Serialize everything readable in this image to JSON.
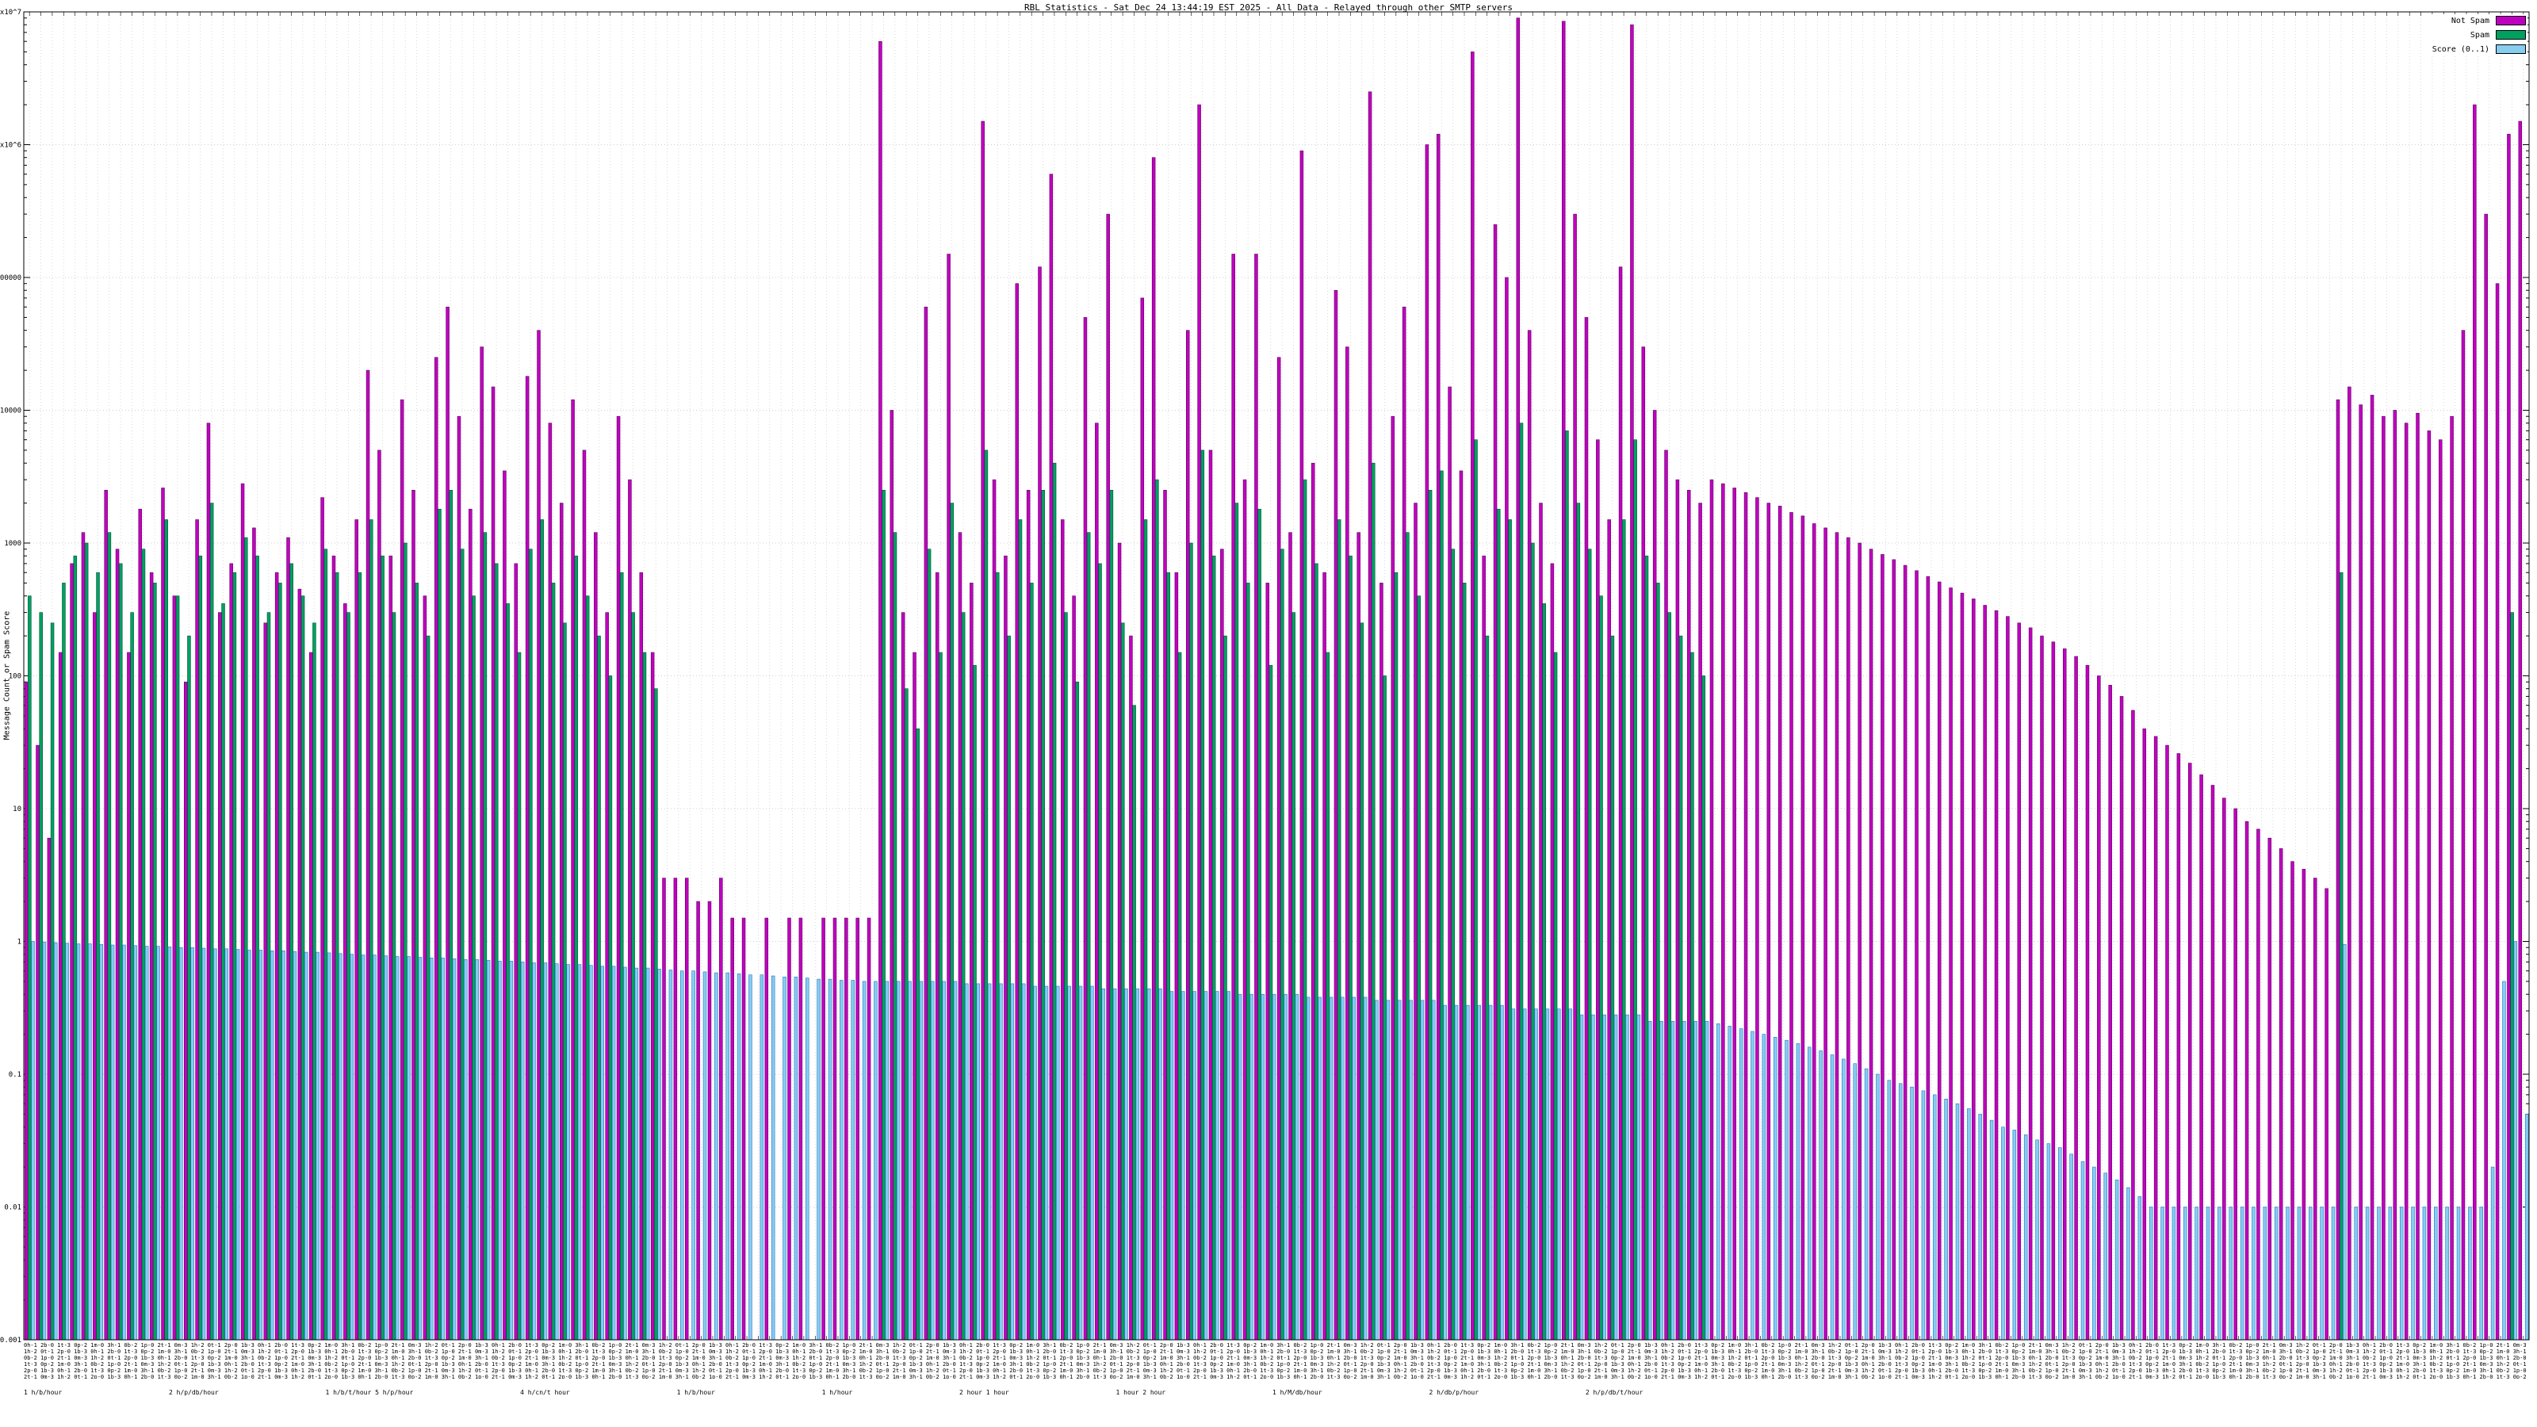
{
  "chart_data": {
    "type": "bar",
    "title": "RBL Statistics - Sat Dec 24 13:44:19 EST 2025 - All Data - Relayed through other SMTP servers",
    "ylabel": "Message Count or Spam Score",
    "ylog": true,
    "ymin": 0.001,
    "ymax": 10000000,
    "grid": true,
    "legend_position": "top-right",
    "y_ticks": [
      {
        "value": 10000000,
        "label": "1x10^7"
      },
      {
        "value": 1000000,
        "label": "1x10^6"
      },
      {
        "value": 100000,
        "label": "100000"
      },
      {
        "value": 10000,
        "label": "10000"
      },
      {
        "value": 1000,
        "label": "1000"
      },
      {
        "value": 100,
        "label": "100"
      },
      {
        "value": 10,
        "label": "10"
      },
      {
        "value": 1,
        "label": "1"
      },
      {
        "value": 0.1,
        "label": "0.1"
      },
      {
        "value": 0.01,
        "label": "0.01"
      },
      {
        "value": 0.001,
        "label": "0.001"
      }
    ],
    "legend": [
      {
        "label": "Not Spam",
        "color": "#c000c0"
      },
      {
        "label": "Spam",
        "color": "#00a060"
      },
      {
        "label": "Score (0..1)",
        "color": "#86cdf0"
      }
    ],
    "xaxis_row1": "0h-1 2b-0 1t-3 0p-2 1m-0 3h-1 0b-2 1p-0 2t-1 0m-3 1h-2 0t-1 2p-0 1b-3 ",
    "xaxis_row2": "1 h/b/hour                            2 h/p/db/hour                            1 h/b/t/hour 5 h/p/hour                            4 h/cn/t hour                            1 h/b/hour                            1 h/hour                            2 hour 1 hour                            1 hour 2 hour                            1 h/M/db/hour                            2 h/db/p/hour                            2 h/p/db/t/hour",
    "series": [
      {
        "id": "not-spam",
        "name": "Not Spam",
        "color": "#c000c0",
        "stroke": "#5c005c",
        "values": [
          90,
          30,
          6,
          150,
          700,
          1200,
          300,
          2500,
          900,
          150,
          1800,
          600,
          2600,
          400,
          90,
          1500,
          8000,
          300,
          700,
          2800,
          1300,
          250,
          600,
          1100,
          450,
          150,
          2200,
          800,
          350,
          1500,
          20000,
          5000,
          800,
          12000,
          2500,
          400,
          25000,
          60000,
          9000,
          1800,
          30000,
          15000,
          3500,
          700,
          18000,
          40000,
          8000,
          2000,
          12000,
          5000,
          1200,
          300,
          9000,
          3000,
          600,
          150,
          3,
          3,
          3,
          2,
          2,
          3,
          1.5,
          1.5,
          0,
          1.5,
          0,
          1.5,
          1.5,
          0,
          1.5,
          1.5,
          1.5,
          1.5,
          1.5,
          6000000,
          10000,
          300,
          150,
          60000,
          600,
          150000,
          1200,
          500,
          1500000,
          3000,
          800,
          90000,
          2500,
          120000,
          600000,
          1500,
          400,
          50000,
          8000,
          300000,
          1000,
          200,
          70000,
          800000,
          2500,
          600,
          40000,
          2000000,
          5000,
          900,
          150000,
          3000,
          150000,
          500,
          25000,
          1200,
          900000,
          4000,
          600,
          80000,
          30000,
          1200,
          2500000,
          500,
          9000,
          60000,
          2000,
          1000000,
          1200000,
          15000,
          3500,
          5000000,
          800,
          250000,
          100000,
          9000000,
          40000,
          2000,
          700,
          8500000,
          300000,
          50000,
          6000,
          1500,
          120000,
          8000000,
          30000,
          10000,
          5000,
          3000,
          2500,
          2000,
          3000,
          2800,
          2600,
          2400,
          2200,
          2000,
          1900,
          1700,
          1600,
          1400,
          1300,
          1200,
          1100,
          1000,
          900,
          820,
          750,
          680,
          620,
          560,
          510,
          460,
          420,
          380,
          340,
          310,
          280,
          250,
          230,
          200,
          180,
          160,
          140,
          120,
          100,
          85,
          70,
          55,
          40,
          35,
          30,
          26,
          22,
          18,
          15,
          12,
          10,
          8,
          7,
          6,
          5,
          4,
          3.5,
          3,
          2.5,
          12000,
          15000,
          11000,
          13000,
          9000,
          10000,
          8000,
          9500,
          7000,
          6000,
          9000,
          40000,
          2000000,
          300000,
          90000,
          1200000,
          1500000
        ]
      },
      {
        "id": "spam",
        "name": "Spam",
        "color": "#00a060",
        "stroke": "#00513a",
        "values": [
          400,
          300,
          250,
          500,
          800,
          1000,
          600,
          1200,
          700,
          300,
          900,
          500,
          1500,
          400,
          200,
          800,
          2000,
          350,
          600,
          1100,
          800,
          300,
          500,
          700,
          400,
          250,
          900,
          600,
          300,
          600,
          1500,
          800,
          300,
          1000,
          500,
          200,
          1800,
          2500,
          900,
          400,
          1200,
          700,
          350,
          150,
          900,
          1500,
          500,
          250,
          800,
          400,
          200,
          100,
          600,
          300,
          150,
          80,
          0,
          0,
          0,
          0,
          0,
          0,
          0,
          0,
          0,
          0,
          0,
          0,
          0,
          0,
          0,
          0,
          0,
          0,
          0,
          2500,
          1200,
          80,
          40,
          900,
          150,
          2000,
          300,
          120,
          5000,
          600,
          200,
          1500,
          500,
          2500,
          4000,
          300,
          90,
          1200,
          700,
          2500,
          250,
          60,
          1500,
          3000,
          600,
          150,
          1000,
          5000,
          800,
          200,
          2000,
          500,
          1800,
          120,
          900,
          300,
          3000,
          700,
          150,
          1500,
          800,
          250,
          4000,
          100,
          600,
          1200,
          400,
          2500,
          3500,
          900,
          500,
          6000,
          200,
          1800,
          1500,
          8000,
          1000,
          350,
          150,
          7000,
          2000,
          900,
          400,
          200,
          1500,
          6000,
          800,
          500,
          300,
          200,
          150,
          100,
          0,
          0,
          0,
          0,
          0,
          0,
          0,
          0,
          0,
          0,
          0,
          0,
          0,
          0,
          0,
          0,
          0,
          0,
          0,
          0,
          0,
          0,
          0,
          0,
          0,
          0,
          0,
          0,
          0,
          0,
          0,
          0,
          0,
          0,
          0,
          0,
          0,
          0,
          0,
          0,
          0,
          0,
          0,
          0,
          0,
          0,
          0,
          0,
          0,
          0,
          0,
          0,
          0,
          0,
          0,
          600,
          0,
          0,
          0,
          0,
          0,
          0,
          0,
          0,
          0,
          0,
          0,
          0,
          0,
          0,
          300,
          0
        ]
      },
      {
        "id": "score",
        "name": "Score (0..1)",
        "color": "#86cdf0",
        "stroke": "#2b6fc4",
        "values": [
          1.0,
          0.99,
          0.98,
          0.97,
          0.96,
          0.96,
          0.95,
          0.94,
          0.94,
          0.93,
          0.92,
          0.92,
          0.91,
          0.9,
          0.9,
          0.89,
          0.88,
          0.88,
          0.87,
          0.86,
          0.86,
          0.85,
          0.85,
          0.84,
          0.83,
          0.83,
          0.82,
          0.81,
          0.8,
          0.79,
          0.79,
          0.78,
          0.77,
          0.77,
          0.76,
          0.75,
          0.75,
          0.74,
          0.73,
          0.73,
          0.72,
          0.71,
          0.71,
          0.7,
          0.69,
          0.69,
          0.68,
          0.67,
          0.67,
          0.66,
          0.65,
          0.65,
          0.64,
          0.63,
          0.63,
          0.62,
          0.61,
          0.6,
          0.6,
          0.59,
          0.58,
          0.58,
          0.57,
          0.56,
          0.56,
          0.55,
          0.54,
          0.54,
          0.53,
          0.52,
          0.52,
          0.51,
          0.51,
          0.5,
          0.5,
          0.5,
          0.5,
          0.5,
          0.5,
          0.5,
          0.5,
          0.5,
          0.48,
          0.48,
          0.48,
          0.48,
          0.48,
          0.48,
          0.46,
          0.46,
          0.46,
          0.46,
          0.46,
          0.46,
          0.44,
          0.44,
          0.44,
          0.44,
          0.44,
          0.44,
          0.42,
          0.42,
          0.42,
          0.42,
          0.42,
          0.42,
          0.4,
          0.4,
          0.4,
          0.4,
          0.4,
          0.4,
          0.38,
          0.38,
          0.38,
          0.38,
          0.38,
          0.38,
          0.36,
          0.36,
          0.36,
          0.36,
          0.36,
          0.36,
          0.33,
          0.33,
          0.33,
          0.33,
          0.33,
          0.33,
          0.31,
          0.31,
          0.31,
          0.31,
          0.31,
          0.31,
          0.28,
          0.28,
          0.28,
          0.28,
          0.28,
          0.28,
          0.25,
          0.25,
          0.25,
          0.25,
          0.25,
          0.25,
          0.24,
          0.23,
          0.22,
          0.21,
          0.2,
          0.19,
          0.18,
          0.17,
          0.16,
          0.15,
          0.14,
          0.13,
          0.12,
          0.11,
          0.1,
          0.09,
          0.085,
          0.08,
          0.075,
          0.07,
          0.065,
          0.06,
          0.055,
          0.05,
          0.045,
          0.04,
          0.038,
          0.035,
          0.032,
          0.03,
          0.028,
          0.025,
          0.022,
          0.02,
          0.018,
          0.016,
          0.014,
          0.012,
          0.01,
          0.01,
          0.01,
          0.01,
          0.01,
          0.01,
          0.01,
          0.01,
          0.01,
          0.01,
          0.01,
          0.01,
          0.01,
          0.01,
          0.01,
          0.01,
          0.01,
          0.95,
          0.01,
          0.01,
          0.01,
          0.01,
          0.01,
          0.01,
          0.01,
          0.01,
          0.01,
          0.01,
          0.01,
          0.01,
          0.02,
          0.5,
          1.0,
          0.05
        ]
      }
    ]
  }
}
